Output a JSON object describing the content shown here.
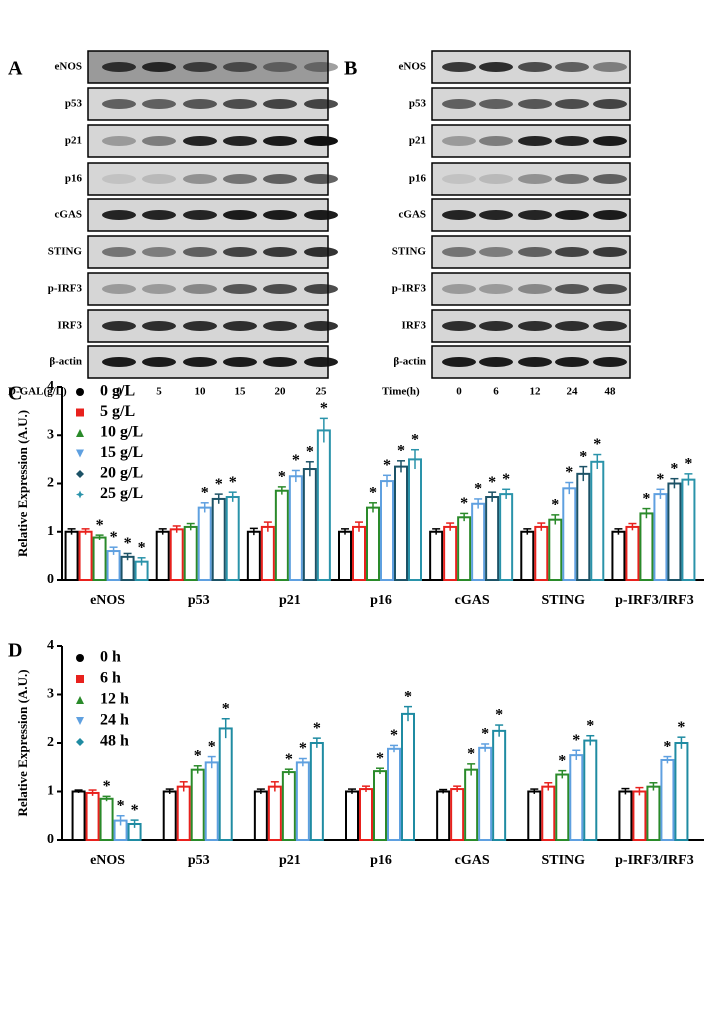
{
  "panel_labels": [
    "A",
    "B",
    "C",
    "D"
  ],
  "blots": [
    {
      "rows": [
        "eNOS",
        "p53",
        "p21",
        "p16",
        "cGAS",
        "STING",
        "p-IRF3",
        "IRF3",
        "β-actin"
      ],
      "x_title": "D-GAL(g/L)",
      "lanes": [
        "0",
        "5",
        "10",
        "15",
        "20",
        "25"
      ]
    },
    {
      "rows": [
        "eNOS",
        "p53",
        "p21",
        "p16",
        "cGAS",
        "STING",
        "p-IRF3",
        "IRF3",
        "β-actin"
      ],
      "x_title": "Time(h)",
      "lanes": [
        "0",
        "6",
        "12",
        "24",
        "48"
      ]
    }
  ],
  "chart_data": [
    {
      "type": "bar",
      "ylabel": "Relative Expression (A.U.)",
      "categories": [
        "eNOS",
        "p53",
        "p21",
        "p16",
        "cGAS",
        "STING",
        "p-IRF3/IRF3"
      ],
      "ylim": [
        0,
        4
      ],
      "yticks": [
        0,
        1,
        2,
        3,
        4
      ],
      "series": [
        {
          "name": "0 g/L",
          "color": "#000000",
          "marker": "circle",
          "values": [
            1,
            1,
            1,
            1,
            1,
            1,
            1
          ],
          "errors": [
            0.06,
            0.06,
            0.07,
            0.06,
            0.06,
            0.06,
            0.06
          ],
          "significance": [
            null,
            null,
            null,
            null,
            null,
            null,
            null
          ]
        },
        {
          "name": "5 g/L",
          "color": "#e8211d",
          "marker": "square",
          "values": [
            1,
            1.05,
            1.1,
            1.1,
            1.1,
            1.1,
            1.1
          ],
          "errors": [
            0.06,
            0.07,
            0.1,
            0.1,
            0.08,
            0.08,
            0.07
          ],
          "significance": [
            null,
            null,
            null,
            null,
            null,
            null,
            null
          ]
        },
        {
          "name": "10 g/L",
          "color": "#2a8a2a",
          "marker": "triangle",
          "values": [
            0.88,
            1.1,
            1.85,
            1.5,
            1.3,
            1.25,
            1.38
          ],
          "errors": [
            0.05,
            0.07,
            0.08,
            0.1,
            0.08,
            0.1,
            0.1
          ],
          "significance": [
            "*",
            null,
            "*",
            "*",
            "*",
            "*",
            "*"
          ]
        },
        {
          "name": "15 g/L",
          "color": "#5fa0e0",
          "marker": "down",
          "values": [
            0.6,
            1.5,
            2.15,
            2.05,
            1.58,
            1.9,
            1.78
          ],
          "errors": [
            0.08,
            0.1,
            0.12,
            0.12,
            0.1,
            0.12,
            0.1
          ],
          "significance": [
            "*",
            "*",
            "*",
            "*",
            "*",
            "*",
            "*"
          ]
        },
        {
          "name": "20 g/L",
          "color": "#1c5266",
          "marker": "diamond",
          "values": [
            0.48,
            1.68,
            2.3,
            2.35,
            1.72,
            2.2,
            2.0
          ],
          "errors": [
            0.07,
            0.1,
            0.15,
            0.12,
            0.1,
            0.15,
            0.1
          ],
          "significance": [
            "*",
            "*",
            "*",
            "*",
            "*",
            "*",
            "*"
          ]
        },
        {
          "name": "25 g/L",
          "color": "#2a93aa",
          "marker": "star",
          "values": [
            0.38,
            1.72,
            3.1,
            2.5,
            1.78,
            2.45,
            2.08
          ],
          "errors": [
            0.08,
            0.1,
            0.25,
            0.2,
            0.1,
            0.15,
            0.12
          ],
          "significance": [
            "*",
            "*",
            "*",
            "*",
            "*",
            "*",
            "*"
          ]
        }
      ]
    },
    {
      "type": "bar",
      "ylabel": "Relative Expression (A.U.)",
      "categories": [
        "eNOS",
        "p53",
        "p21",
        "p16",
        "cGAS",
        "STING",
        "p-IRF3/IRF3"
      ],
      "ylim": [
        0,
        4
      ],
      "yticks": [
        0,
        1,
        2,
        3,
        4
      ],
      "series": [
        {
          "name": "0 h",
          "color": "#000000",
          "marker": "circle",
          "values": [
            1,
            1,
            1,
            1,
            1,
            1,
            1
          ],
          "errors": [
            0.03,
            0.05,
            0.05,
            0.05,
            0.04,
            0.05,
            0.06
          ],
          "significance": [
            null,
            null,
            null,
            null,
            null,
            null,
            null
          ]
        },
        {
          "name": "6 h",
          "color": "#e8211d",
          "marker": "square",
          "values": [
            0.97,
            1.1,
            1.1,
            1.05,
            1.05,
            1.1,
            1.0
          ],
          "errors": [
            0.06,
            0.1,
            0.1,
            0.06,
            0.06,
            0.08,
            0.08
          ],
          "significance": [
            null,
            null,
            null,
            null,
            null,
            null,
            null
          ]
        },
        {
          "name": "12 h",
          "color": "#2a8a2a",
          "marker": "triangle",
          "values": [
            0.85,
            1.45,
            1.4,
            1.42,
            1.45,
            1.35,
            1.1
          ],
          "errors": [
            0.05,
            0.08,
            0.06,
            0.06,
            0.12,
            0.08,
            0.08
          ],
          "significance": [
            "*",
            "*",
            "*",
            "*",
            "*",
            "*",
            null
          ]
        },
        {
          "name": "24 h",
          "color": "#5fa0e0",
          "marker": "down",
          "values": [
            0.4,
            1.6,
            1.6,
            1.88,
            1.9,
            1.75,
            1.65
          ],
          "errors": [
            0.1,
            0.12,
            0.08,
            0.07,
            0.08,
            0.1,
            0.07
          ],
          "significance": [
            "*",
            "*",
            "*",
            "*",
            "*",
            "*",
            "*"
          ]
        },
        {
          "name": "48 h",
          "color": "#1f8ba2",
          "marker": "diamond",
          "values": [
            0.33,
            2.3,
            2.0,
            2.6,
            2.25,
            2.05,
            2.0
          ],
          "errors": [
            0.08,
            0.2,
            0.1,
            0.15,
            0.12,
            0.1,
            0.12
          ],
          "significance": [
            "*",
            "*",
            "*",
            "*",
            "*",
            "*",
            "*"
          ]
        }
      ]
    }
  ]
}
